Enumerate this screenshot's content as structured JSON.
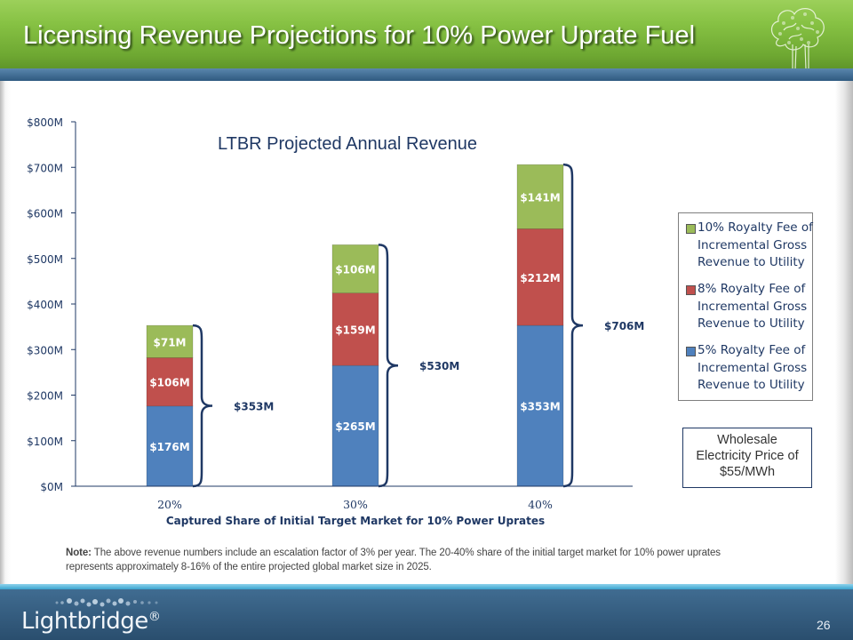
{
  "slide": {
    "title": "Licensing Revenue Projections for 10% Power Uprate Fuel",
    "page_number": "26",
    "logo_text": "Lightbridge",
    "logo_mark": "®",
    "note_label": "Note:",
    "note_text": "The above revenue numbers include an escalation factor of 3% per year.  The 20-40% share of the initial target market for 10% power uprates represents approximately 8-16% of the entire projected global market size in 2025.",
    "price_box": "Wholesale Electricity Price of $55/MWh"
  },
  "chart_data": {
    "type": "bar",
    "stacked": true,
    "title": "LTBR Projected Annual Revenue",
    "xlabel": "Captured Share of Initial Target Market for 10% Power Uprates",
    "ylabel": "",
    "ylim": [
      0,
      800
    ],
    "yticks": [
      0,
      100,
      200,
      300,
      400,
      500,
      600,
      700,
      800
    ],
    "ytick_labels": [
      "$0M",
      "$100M",
      "$200M",
      "$300M",
      "$400M",
      "$500M",
      "$600M",
      "$700M",
      "$800M"
    ],
    "grid": false,
    "legend_position": "right",
    "categories": [
      "20%",
      "30%",
      "40%"
    ],
    "series": [
      {
        "name": "5% Royalty Fee of Incremental Gross Revenue to Utility",
        "color": "#4f81bd",
        "values": [
          176,
          265,
          353
        ],
        "labels": [
          "$176M",
          "$265M",
          "$353M"
        ]
      },
      {
        "name": "8% Royalty Fee of Incremental Gross Revenue to Utility",
        "color": "#c0504d",
        "values": [
          106,
          159,
          212
        ],
        "labels": [
          "$106M",
          "$159M",
          "$212M"
        ]
      },
      {
        "name": "10% Royalty Fee of Incremental Gross Revenue to Utility",
        "color": "#9bbb59",
        "values": [
          71,
          106,
          141
        ],
        "labels": [
          "$71M",
          "$106M",
          "$141M"
        ]
      }
    ],
    "totals": [
      353,
      530,
      706
    ],
    "total_labels": [
      "$353M",
      "$530M",
      "$706M"
    ],
    "legend": [
      {
        "name": "10% Royalty Fee of Incremental Gross Revenue to Utility",
        "color": "#9bbb59"
      },
      {
        "name": "8% Royalty Fee of Incremental Gross Revenue to Utility",
        "color": "#c0504d"
      },
      {
        "name": "5% Royalty Fee of Incremental Gross Revenue to Utility",
        "color": "#4f81bd"
      }
    ],
    "brace_color": "#1f3864",
    "text_color": "#1f3864"
  }
}
